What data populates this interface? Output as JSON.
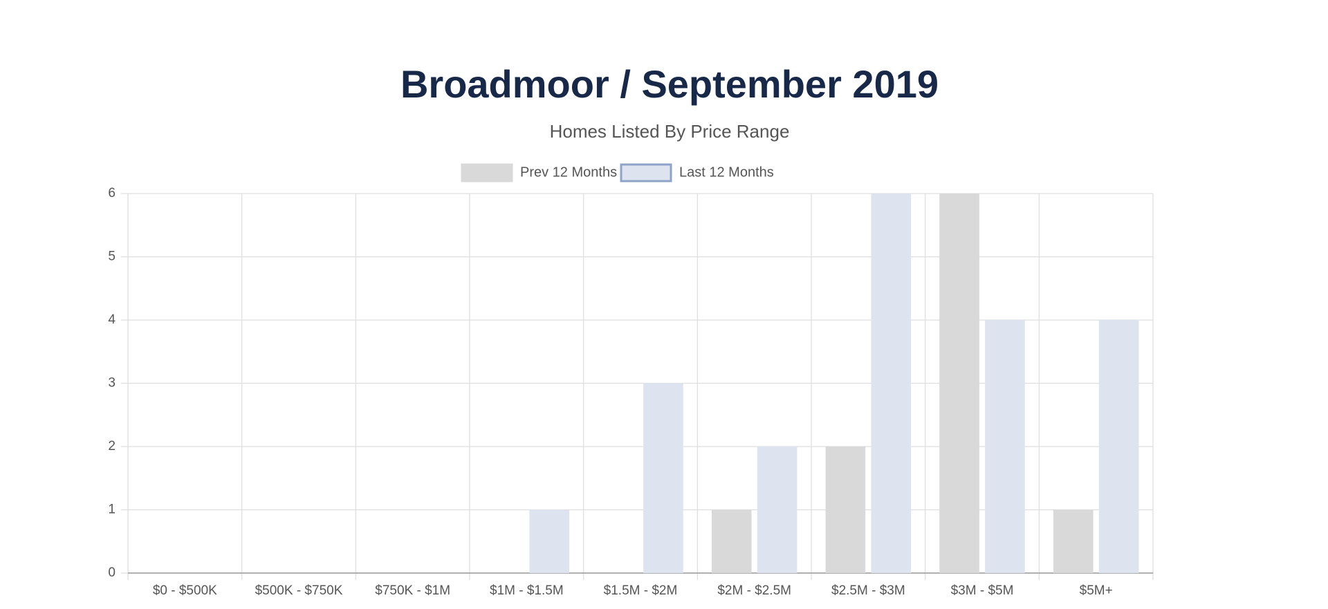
{
  "chart_data": {
    "type": "bar",
    "title": "Broadmoor / September 2019",
    "subtitle": "Homes Listed By Price Range",
    "categories": [
      "$0 - $500K",
      "$500K - $750K",
      "$750K - $1M",
      "$1M - $1.5M",
      "$1.5M - $2M",
      "$2M - $2.5M",
      "$2.5M - $3M",
      "$3M - $5M",
      "$5M+"
    ],
    "series": [
      {
        "name": "Prev 12 Months",
        "color": "#d9d9d9",
        "values": [
          0,
          0,
          0,
          0,
          0,
          1,
          2,
          6,
          1
        ]
      },
      {
        "name": "Last 12 Months",
        "color": "#dde4ef",
        "values": [
          0,
          0,
          0,
          1,
          3,
          2,
          6,
          4,
          4
        ]
      }
    ],
    "ylim": [
      0,
      6
    ],
    "yticks": [
      0,
      1,
      2,
      3,
      4,
      5,
      6
    ],
    "grid": true
  }
}
